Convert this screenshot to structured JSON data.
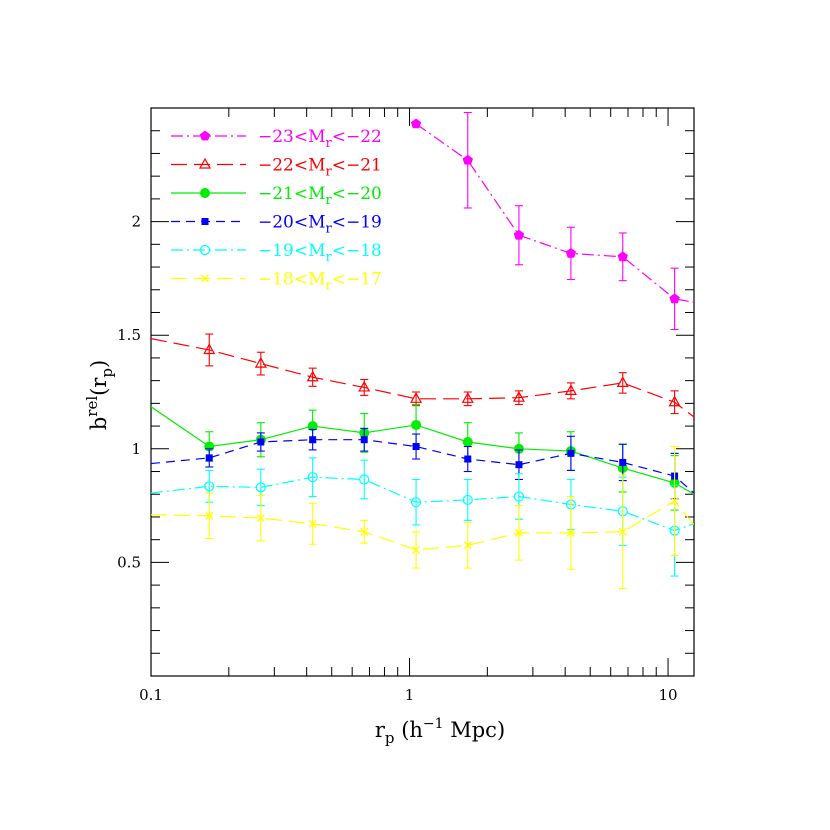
{
  "chart_data": {
    "type": "line",
    "xlabel": "r_p (h^-1 Mpc)",
    "ylabel": "b^rel(r_p)",
    "xscale": "log",
    "xlim": [
      0.1,
      12.6
    ],
    "ylim": [
      0,
      2.5
    ],
    "x_ticks": [
      0.1,
      1,
      10
    ],
    "x_tick_labels": [
      "0.1",
      "1",
      "10"
    ],
    "y_ticks": [
      0.5,
      1,
      1.5,
      2
    ],
    "y_tick_labels": [
      "0.5",
      "1",
      "1.5",
      "2"
    ],
    "legend_position": "top-left",
    "grid": false,
    "series": [
      {
        "name": "−23<M_r<−22",
        "color": "#ff00ff",
        "marker": "pentagon-filled",
        "dash": "dash-dot",
        "x": [
          1.06,
          1.68,
          2.65,
          4.21,
          6.68,
          10.6,
          12.6
        ],
        "y": [
          2.43,
          2.27,
          1.94,
          1.86,
          1.845,
          1.66,
          1.645
        ],
        "err": [
          null,
          0.21,
          0.13,
          0.115,
          0.105,
          0.135,
          null
        ],
        "markers": [
          true,
          true,
          true,
          true,
          true,
          true,
          false
        ]
      },
      {
        "name": "−22<M_r<−21",
        "color": "#ff0000",
        "marker": "triangle-open",
        "dash": "long-dash",
        "x": [
          0.1,
          0.168,
          0.266,
          0.422,
          0.668,
          1.06,
          1.68,
          2.65,
          4.21,
          6.68,
          10.6,
          12.6
        ],
        "y": [
          1.485,
          1.435,
          1.375,
          1.315,
          1.27,
          1.22,
          1.22,
          1.225,
          1.255,
          1.29,
          1.205,
          1.14
        ],
        "err": [
          null,
          0.07,
          0.05,
          0.04,
          0.035,
          0.03,
          0.03,
          0.03,
          0.035,
          0.045,
          0.05,
          null
        ],
        "markers": [
          false,
          true,
          true,
          true,
          true,
          true,
          true,
          true,
          true,
          true,
          true,
          false
        ]
      },
      {
        "name": "−21<M_r<−20",
        "color": "#00ee00",
        "marker": "circle-filled",
        "dash": "solid",
        "x": [
          0.1,
          0.168,
          0.266,
          0.422,
          0.668,
          1.06,
          1.68,
          2.65,
          4.21,
          6.68,
          10.6,
          12.6
        ],
        "y": [
          1.185,
          1.01,
          1.04,
          1.1,
          1.07,
          1.105,
          1.03,
          1.0,
          0.99,
          0.915,
          0.85,
          0.8
        ],
        "err": [
          null,
          0.065,
          0.075,
          0.07,
          0.085,
          0.09,
          0.085,
          0.07,
          0.085,
          0.105,
          0.12,
          null
        ],
        "markers": [
          false,
          true,
          true,
          true,
          true,
          true,
          true,
          true,
          true,
          true,
          true,
          false
        ]
      },
      {
        "name": "−20<M_r<−19",
        "color": "#0000ff",
        "marker": "square-filled",
        "dash": "dash",
        "x": [
          0.1,
          0.168,
          0.266,
          0.422,
          0.668,
          1.06,
          1.68,
          2.65,
          4.21,
          6.68,
          10.6,
          12.6
        ],
        "y": [
          0.935,
          0.96,
          1.03,
          1.04,
          1.04,
          1.01,
          0.955,
          0.93,
          0.98,
          0.94,
          0.88,
          0.805
        ],
        "err": [
          null,
          0.04,
          0.04,
          0.045,
          0.05,
          0.055,
          0.055,
          0.065,
          0.075,
          0.08,
          0.1,
          null
        ],
        "markers": [
          false,
          true,
          true,
          true,
          true,
          true,
          true,
          true,
          true,
          true,
          true,
          false
        ]
      },
      {
        "name": "−19<M_r<−18",
        "color": "#00ffff",
        "marker": "circle-open",
        "dash": "dash-dot",
        "x": [
          0.1,
          0.168,
          0.266,
          0.422,
          0.668,
          1.06,
          1.68,
          2.65,
          4.21,
          6.68,
          10.6,
          12.6
        ],
        "y": [
          0.805,
          0.835,
          0.83,
          0.875,
          0.865,
          0.765,
          0.775,
          0.79,
          0.755,
          0.725,
          0.64,
          0.67
        ],
        "err": [
          null,
          0.07,
          0.08,
          0.085,
          0.085,
          0.1,
          0.09,
          0.1,
          0.11,
          0.15,
          0.2,
          null
        ],
        "markers": [
          false,
          true,
          true,
          true,
          true,
          true,
          true,
          true,
          true,
          true,
          true,
          false
        ]
      },
      {
        "name": "−18<M_r<−17",
        "color": "#ffff00",
        "marker": "cross",
        "dash": "long-dash",
        "x": [
          0.1,
          0.168,
          0.266,
          0.422,
          0.668,
          1.06,
          1.68,
          2.65,
          4.21,
          6.68,
          10.6,
          12.6
        ],
        "y": [
          0.71,
          0.705,
          0.695,
          0.67,
          0.635,
          0.555,
          0.575,
          0.63,
          0.63,
          0.635,
          0.77,
          0.665
        ],
        "err": [
          null,
          0.1,
          0.1,
          0.09,
          0.05,
          0.08,
          0.1,
          0.12,
          0.16,
          0.25,
          0.24,
          null
        ],
        "markers": [
          false,
          true,
          true,
          true,
          true,
          true,
          true,
          true,
          true,
          true,
          true,
          false
        ]
      }
    ]
  }
}
